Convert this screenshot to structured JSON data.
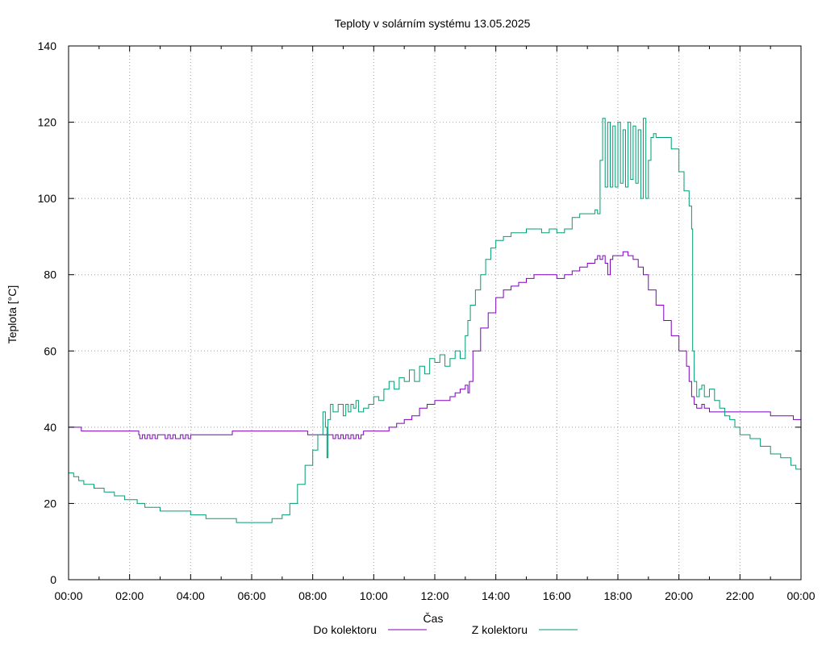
{
  "chart_data": {
    "type": "line",
    "title": "Teploty v solárním systému 13.05.2025",
    "xlabel": "Čas",
    "ylabel": "Teplota [°C]",
    "xlim": [
      "00:00",
      "24:00"
    ],
    "ylim": [
      0,
      140
    ],
    "grid": true,
    "legend_position": "bottom-center",
    "x_ticks": [
      "00:00",
      "02:00",
      "04:00",
      "06:00",
      "08:00",
      "10:00",
      "12:00",
      "14:00",
      "16:00",
      "18:00",
      "20:00",
      "22:00",
      "00:00"
    ],
    "y_ticks": [
      "0",
      "20",
      "40",
      "60",
      "80",
      "100",
      "120",
      "140"
    ],
    "series": [
      {
        "name": "Do kolektoru",
        "color": "#7f00bf",
        "style": "step",
        "x": [
          "00:00",
          "00:24",
          "00:25",
          "02:18",
          "02:20",
          "02:25",
          "02:30",
          "02:35",
          "02:40",
          "02:45",
          "02:50",
          "02:55",
          "03:00",
          "03:10",
          "03:15",
          "03:20",
          "03:25",
          "03:30",
          "03:40",
          "03:45",
          "03:50",
          "03:55",
          "04:00",
          "04:05",
          "05:20",
          "05:22",
          "07:45",
          "07:50",
          "08:30",
          "08:40",
          "08:45",
          "08:50",
          "08:55",
          "09:00",
          "09:05",
          "09:10",
          "09:15",
          "09:20",
          "09:25",
          "09:30",
          "09:35",
          "09:40",
          "09:50",
          "10:30",
          "10:45",
          "11:00",
          "11:15",
          "11:30",
          "11:45",
          "12:00",
          "12:15",
          "12:30",
          "12:40",
          "12:50",
          "13:00",
          "13:05",
          "13:08",
          "13:15",
          "13:30",
          "13:45",
          "14:00",
          "14:15",
          "14:30",
          "14:45",
          "15:00",
          "15:15",
          "15:30",
          "16:00",
          "16:15",
          "16:30",
          "16:45",
          "17:00",
          "17:15",
          "17:20",
          "17:25",
          "17:30",
          "17:35",
          "17:40",
          "17:45",
          "17:50",
          "18:00",
          "18:10",
          "18:20",
          "18:30",
          "18:40",
          "18:50",
          "19:00",
          "19:15",
          "19:30",
          "19:45",
          "20:00",
          "20:15",
          "20:20",
          "20:25",
          "20:30",
          "20:35",
          "20:40",
          "20:45",
          "20:50",
          "21:00",
          "21:30",
          "22:00",
          "22:30",
          "23:00",
          "23:30",
          "23:45",
          "24:00"
        ],
        "y": [
          40,
          40,
          39,
          38,
          37,
          38,
          37,
          38,
          37,
          38,
          37,
          38,
          38,
          37,
          38,
          37,
          38,
          37,
          38,
          37,
          38,
          37,
          38,
          38,
          38,
          39,
          39,
          38,
          38,
          37,
          38,
          37,
          38,
          37,
          38,
          37,
          38,
          37,
          38,
          37,
          38,
          39,
          39,
          40,
          41,
          42,
          43,
          45,
          46,
          47,
          47,
          48,
          49,
          50,
          51,
          49,
          52,
          60,
          66,
          70,
          74,
          76,
          77,
          78,
          79,
          80,
          80,
          79,
          80,
          81,
          82,
          83,
          84,
          85,
          84,
          85,
          83,
          80,
          84,
          85,
          85,
          86,
          85,
          84,
          82,
          80,
          76,
          72,
          68,
          64,
          60,
          56,
          52,
          48,
          46,
          45,
          45,
          46,
          45,
          44,
          44,
          44,
          44,
          43,
          43,
          42,
          41
        ]
      },
      {
        "name": "Z kolektoru",
        "color": "#009e73",
        "style": "step",
        "x": [
          "00:00",
          "00:10",
          "00:20",
          "00:30",
          "00:40",
          "00:50",
          "01:00",
          "01:10",
          "01:20",
          "01:30",
          "01:50",
          "02:00",
          "02:15",
          "02:30",
          "02:45",
          "03:00",
          "03:30",
          "03:45",
          "04:00",
          "04:20",
          "04:30",
          "05:00",
          "05:20",
          "05:30",
          "06:00",
          "06:30",
          "06:40",
          "07:00",
          "07:15",
          "07:30",
          "07:45",
          "08:00",
          "08:10",
          "08:20",
          "08:25",
          "08:28",
          "08:30",
          "08:35",
          "08:40",
          "08:50",
          "09:00",
          "09:05",
          "09:10",
          "09:15",
          "09:20",
          "09:25",
          "09:30",
          "09:40",
          "09:50",
          "10:00",
          "10:10",
          "10:20",
          "10:30",
          "10:40",
          "10:50",
          "11:00",
          "11:10",
          "11:20",
          "11:30",
          "11:40",
          "11:50",
          "12:00",
          "12:10",
          "12:20",
          "12:30",
          "12:40",
          "12:50",
          "13:00",
          "13:05",
          "13:10",
          "13:20",
          "13:30",
          "13:40",
          "13:50",
          "14:00",
          "14:15",
          "14:30",
          "14:45",
          "15:00",
          "15:15",
          "15:30",
          "15:45",
          "16:00",
          "16:15",
          "16:30",
          "16:45",
          "17:00",
          "17:15",
          "17:20",
          "17:25",
          "17:30",
          "17:35",
          "17:40",
          "17:45",
          "17:50",
          "17:55",
          "18:00",
          "18:05",
          "18:10",
          "18:15",
          "18:20",
          "18:25",
          "18:30",
          "18:35",
          "18:40",
          "18:45",
          "18:50",
          "18:55",
          "19:00",
          "19:05",
          "19:10",
          "19:15",
          "19:30",
          "19:45",
          "20:00",
          "20:10",
          "20:20",
          "20:25",
          "20:27",
          "20:30",
          "20:35",
          "20:40",
          "20:45",
          "20:50",
          "21:00",
          "21:10",
          "21:20",
          "21:30",
          "21:40",
          "21:50",
          "22:00",
          "22:20",
          "22:40",
          "23:00",
          "23:20",
          "23:40",
          "23:50",
          "24:00"
        ],
        "y": [
          28,
          27,
          26,
          25,
          25,
          24,
          24,
          23,
          23,
          22,
          21,
          21,
          20,
          19,
          19,
          18,
          18,
          18,
          17,
          17,
          16,
          16,
          16,
          15,
          15,
          15,
          16,
          17,
          20,
          25,
          30,
          34,
          38,
          44,
          40,
          32,
          42,
          46,
          44,
          46,
          43,
          46,
          44,
          46,
          45,
          47,
          44,
          45,
          46,
          48,
          47,
          50,
          52,
          50,
          53,
          52,
          55,
          52,
          56,
          54,
          58,
          57,
          59,
          56,
          58,
          60,
          58,
          64,
          68,
          72,
          76,
          80,
          84,
          87,
          89,
          90,
          91,
          91,
          92,
          92,
          91,
          92,
          91,
          92,
          95,
          96,
          96,
          97,
          96,
          110,
          121,
          103,
          120,
          103,
          119,
          103,
          120,
          104,
          118,
          103,
          120,
          105,
          119,
          104,
          118,
          100,
          121,
          100,
          110,
          116,
          117,
          116,
          116,
          113,
          107,
          102,
          98,
          92,
          60,
          52,
          48,
          50,
          51,
          48,
          50,
          47,
          45,
          43,
          42,
          40,
          38,
          37,
          35,
          33,
          32,
          30,
          29,
          29
        ]
      }
    ]
  }
}
